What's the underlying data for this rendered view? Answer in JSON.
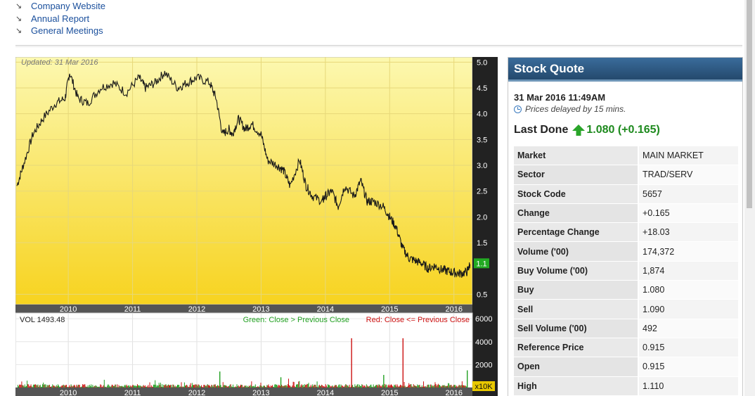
{
  "links": [
    {
      "label": "Company Website",
      "icon": "arrow-down-right-icon"
    },
    {
      "label": "Annual Report",
      "icon": "arrow-down-right-icon"
    },
    {
      "label": "General Meetings",
      "icon": "arrow-down-right-icon"
    }
  ],
  "chart": {
    "updated": "Updated: 31 Mar 2016",
    "vol_label": "VOL  1493.48",
    "legend_green": "Green: Close > Previous Close",
    "legend_red": "Red: Close <= Previous Close",
    "last_price_tag": "1.1",
    "vol_multiplier": "x10K",
    "colors": {
      "price_bg_top": "#fbf7a8",
      "price_bg_bottom": "#f7d31f",
      "up": "#22a022",
      "down": "#cc1111",
      "axis_bg": "#222222",
      "tag": "#22aa22"
    }
  },
  "chart_data": [
    {
      "type": "line",
      "series": [
        {
          "x": [
            2009.2,
            2009.3,
            2009.45,
            2009.6,
            2009.8,
            2009.95,
            2010.02,
            2010.15,
            2010.3,
            2010.5,
            2010.7,
            2010.9,
            2011.1,
            2011.2,
            2011.35,
            2011.5,
            2011.7,
            2011.85,
            2012.0,
            2012.2,
            2012.3,
            2012.4,
            2012.5,
            2012.55,
            2012.65,
            2012.75,
            2012.85,
            2013.0,
            2013.1,
            2013.25,
            2013.35,
            2013.45,
            2013.6,
            2013.7,
            2013.8,
            2013.95,
            2014.0,
            2014.1,
            2014.2,
            2014.3,
            2014.45,
            2014.55,
            2014.65,
            2014.75,
            2014.9,
            2015.0,
            2015.1,
            2015.2,
            2015.3,
            2015.4,
            2015.5,
            2015.6,
            2015.7,
            2015.8,
            2015.9,
            2016.0,
            2016.1,
            2016.2,
            2016.25
          ],
          "y": [
            2.6,
            3.0,
            3.6,
            3.9,
            4.2,
            4.3,
            4.8,
            4.3,
            4.2,
            4.5,
            4.6,
            4.4,
            4.7,
            4.5,
            4.6,
            4.8,
            4.5,
            4.6,
            4.7,
            4.6,
            4.3,
            3.6,
            3.7,
            3.6,
            3.9,
            3.7,
            3.8,
            3.6,
            3.1,
            3.0,
            2.9,
            2.6,
            3.1,
            2.6,
            2.4,
            2.3,
            2.4,
            2.5,
            2.2,
            2.6,
            2.4,
            2.7,
            2.3,
            2.3,
            2.2,
            2.0,
            1.8,
            1.4,
            1.2,
            1.15,
            1.1,
            1.0,
            1.05,
            0.98,
            0.95,
            0.92,
            0.9,
            0.93,
            1.08
          ]
        }
      ],
      "yticks": [
        "5.0",
        "4.5",
        "4.0",
        "3.5",
        "3.0",
        "2.5",
        "2.0",
        "1.5",
        "0.5"
      ],
      "ylim": [
        0.3,
        5.1
      ],
      "xlim": [
        2009.2,
        2016.2
      ],
      "xticks": [
        "2010",
        "2011",
        "2012",
        "2013",
        "2014",
        "2015",
        "2016"
      ]
    },
    {
      "type": "bar",
      "series": [
        {
          "x": [
            2014.4,
            2015.2,
            2012.35,
            2013.3,
            2014.9,
            2016.2
          ],
          "values": [
            4300,
            4300,
            1400,
            900,
            1100,
            1500
          ]
        }
      ],
      "yticks": [
        "6000",
        "4000",
        "2000"
      ],
      "ylim": [
        0,
        6500
      ],
      "xticks": [
        "2010",
        "2011",
        "2012",
        "2013",
        "2014",
        "2015",
        "2016"
      ]
    }
  ],
  "quote": {
    "title": "Stock Quote",
    "datetime": "31 Mar 2016 11:49AM",
    "delay_note": "Prices delayed by 15 mins.",
    "last_done_label": "Last Done",
    "last_done_value": "1.080 (+0.165)",
    "rows": [
      {
        "label": "Market",
        "value": "MAIN MARKET"
      },
      {
        "label": "Sector",
        "value": "TRAD/SERV"
      },
      {
        "label": "Stock Code",
        "value": "5657"
      },
      {
        "label": "Change",
        "value": "+0.165"
      },
      {
        "label": "Percentage Change",
        "value": "+18.03"
      },
      {
        "label": "Volume ('00)",
        "value": "174,372"
      },
      {
        "label": "Buy Volume ('00)",
        "value": "1,874"
      },
      {
        "label": "Buy",
        "value": "1.080"
      },
      {
        "label": "Sell",
        "value": "1.090"
      },
      {
        "label": "Sell Volume ('00)",
        "value": "492"
      },
      {
        "label": "Reference Price",
        "value": "0.915"
      },
      {
        "label": "Open",
        "value": "0.915"
      },
      {
        "label": "High",
        "value": "1.110"
      }
    ]
  }
}
